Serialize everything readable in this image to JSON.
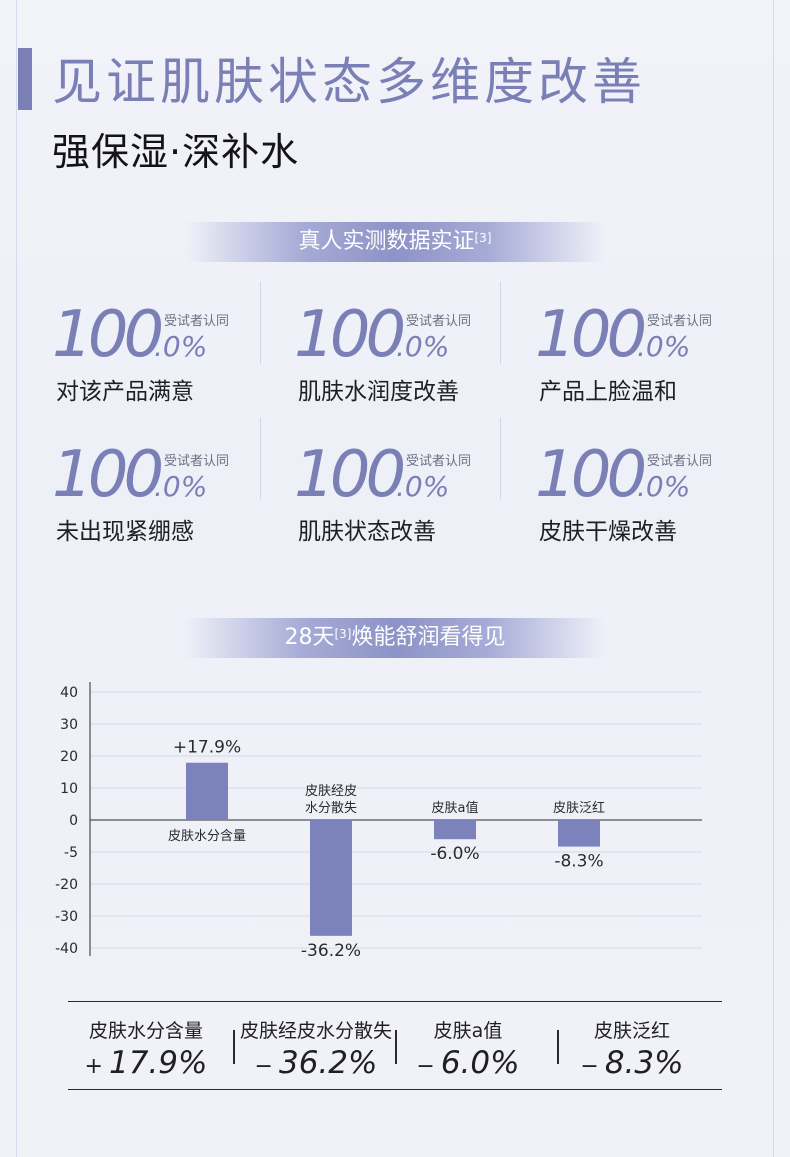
{
  "header": {
    "title": "见证肌肤状态多维度改善",
    "subtitle": "强保湿·深补水"
  },
  "section1": {
    "tag_text": "真人实测数据实证",
    "tag_sup": "[3]",
    "stats": [
      {
        "big": "100",
        "decimal": ".0%",
        "note": "受试者认同",
        "label": "对该产品满意"
      },
      {
        "big": "100",
        "decimal": ".0%",
        "note": "受试者认同",
        "label": "肌肤水润度改善"
      },
      {
        "big": "100",
        "decimal": ".0%",
        "note": "受试者认同",
        "label": "产品上脸温和"
      },
      {
        "big": "100",
        "decimal": ".0%",
        "note": "受试者认同",
        "label": "未出现紧绷感"
      },
      {
        "big": "100",
        "decimal": ".0%",
        "note": "受试者认同",
        "label": "肌肤状态改善"
      },
      {
        "big": "100",
        "decimal": ".0%",
        "note": "受试者认同",
        "label": "皮肤干燥改善"
      }
    ]
  },
  "section2": {
    "tag_prefix": "28天",
    "tag_sup": "[3]",
    "tag_suffix": "焕能舒润看得见"
  },
  "chart_data": {
    "type": "bar",
    "categories": [
      "皮肤水分含量",
      "皮肤经皮水分散失",
      "皮肤a值",
      "皮肤泛红"
    ],
    "category_labels": [
      [
        "皮肤水分含量"
      ],
      [
        "皮肤经皮",
        "水分散失"
      ],
      [
        "皮肤a值"
      ],
      [
        "皮肤泛红"
      ]
    ],
    "values": [
      17.9,
      -36.2,
      -6.0,
      -8.3
    ],
    "value_labels": [
      "+17.9%",
      "-36.2%",
      "-6.0%",
      "-8.3%"
    ],
    "yticks": [
      40,
      30,
      20,
      10,
      0,
      -5,
      -20,
      -30,
      -40
    ],
    "ylim": [
      -40,
      40
    ],
    "bar_color": "#7c82bb",
    "grid": true
  },
  "summary": {
    "items": [
      {
        "label": "皮肤水分含量",
        "sign": "+",
        "value": "17.9%"
      },
      {
        "label": "皮肤经皮水分散失",
        "sign": "−",
        "value": "36.2%"
      },
      {
        "label": "皮肤a值",
        "sign": "−",
        "value": "6.0%"
      },
      {
        "label": "皮肤泛红",
        "sign": "−",
        "value": "8.3%"
      }
    ]
  },
  "colors": {
    "accent": "#7a80b6",
    "text": "#1f1f24"
  }
}
